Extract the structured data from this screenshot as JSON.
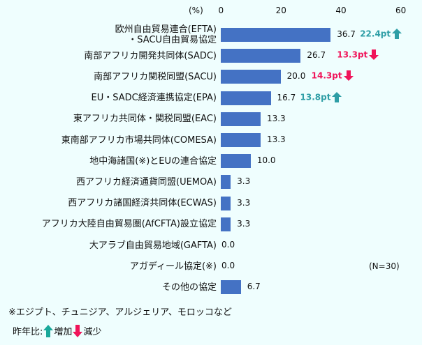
{
  "chart_data": {
    "type": "bar",
    "orientation": "horizontal",
    "unit_label": "(%)",
    "xlim": [
      0,
      60
    ],
    "ticks": [
      "0",
      "20",
      "40",
      "60"
    ],
    "categories": [
      "欧州自由貿易連合(EFTA)\n・SACU自由貿易協定",
      "南部アフリカ開発共同体(SADC)",
      "南部アフリカ関税同盟(SACU)",
      "EU・SADC経済連携協定(EPA)",
      "東アフリカ共同体・関税同盟(EAC)",
      "東南部アフリカ市場共同体(COMESA)",
      "地中海諸国(※)とEUの連合協定",
      "西アフリカ経済通貨同盟(UEMOA)",
      "西アフリカ諸国経済共同体(ECWAS)",
      "アフリカ大陸自由貿易圏(AfCFTA)設立協定",
      "大アラブ自由貿易地域(GAFTA)",
      "アガディール協定(※)",
      "その他の協定"
    ],
    "values": [
      36.7,
      26.7,
      20.0,
      16.7,
      13.3,
      13.3,
      10.0,
      3.3,
      3.3,
      3.3,
      0.0,
      0.0,
      6.7
    ],
    "value_labels": [
      "36.7",
      "26.7",
      "20.0",
      "16.7",
      "13.3",
      "13.3",
      "10.0",
      "3.3",
      "3.3",
      "3.3",
      "0.0",
      "0.0",
      "6.7"
    ],
    "changes": [
      {
        "text": "22.4pt",
        "dir": "up"
      },
      {
        "text": "13.3pt",
        "dir": "down"
      },
      {
        "text": "14.3pt",
        "dir": "down"
      },
      {
        "text": "13.8pt",
        "dir": "up"
      },
      null,
      null,
      null,
      null,
      null,
      null,
      null,
      null,
      null
    ],
    "n_note": "(N=30)",
    "footnote": "※エジプト、チュニジア、アルジェリア、モロッコなど",
    "legend": {
      "prefix": "昨年比:",
      "increase": "増加",
      "decrease": "減少"
    },
    "colors": {
      "bar": "#4472c4",
      "up": "#2e9ea6",
      "down": "#f0145a"
    }
  }
}
